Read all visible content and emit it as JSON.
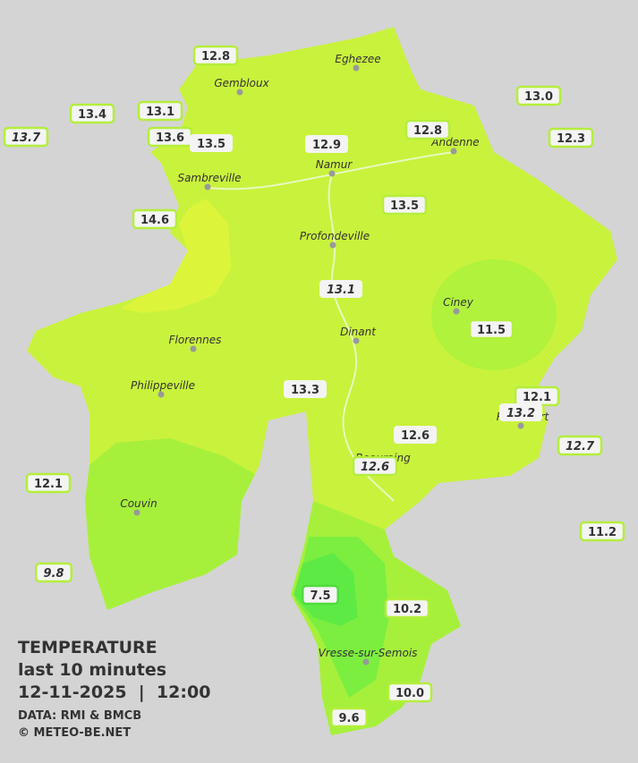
{
  "legend": {
    "title": "TEMPERATURE",
    "subtitle": "last 10 minutes",
    "datetime": "12-11-2025  |  12:00",
    "source": "DATA: RMI & BMCB",
    "copyright": "© METEO-BE.NET"
  },
  "cities": [
    {
      "name": "Eghezee"
    },
    {
      "name": "Gembloux"
    },
    {
      "name": "Andenne"
    },
    {
      "name": "Namur"
    },
    {
      "name": "Sambreville"
    },
    {
      "name": "Profondeville"
    },
    {
      "name": "Ciney"
    },
    {
      "name": "Dinant"
    },
    {
      "name": "Florennes"
    },
    {
      "name": "Philippeville"
    },
    {
      "name": "Rochefort"
    },
    {
      "name": "Beauraing"
    },
    {
      "name": "Couvin"
    },
    {
      "name": "Vresse-sur-Semois"
    }
  ],
  "stations": [
    {
      "label": "12.8"
    },
    {
      "label": "13.4"
    },
    {
      "label": "13.1"
    },
    {
      "label": "13.7"
    },
    {
      "label": "13.6"
    },
    {
      "label": "13.5"
    },
    {
      "label": "13.0"
    },
    {
      "label": "12.3"
    },
    {
      "label": "12.8"
    },
    {
      "label": "12.9"
    },
    {
      "label": "13.5"
    },
    {
      "label": "14.6"
    },
    {
      "label": "13.1"
    },
    {
      "label": "11.5"
    },
    {
      "label": "13.3"
    },
    {
      "label": "12.1"
    },
    {
      "label": "13.2"
    },
    {
      "label": "12.6"
    },
    {
      "label": "12.7"
    },
    {
      "label": "12.6"
    },
    {
      "label": "12.1"
    },
    {
      "label": "11.2"
    },
    {
      "label": "9.8"
    },
    {
      "label": "7.5"
    },
    {
      "label": "10.2"
    },
    {
      "label": "10.0"
    },
    {
      "label": "9.6"
    }
  ]
}
